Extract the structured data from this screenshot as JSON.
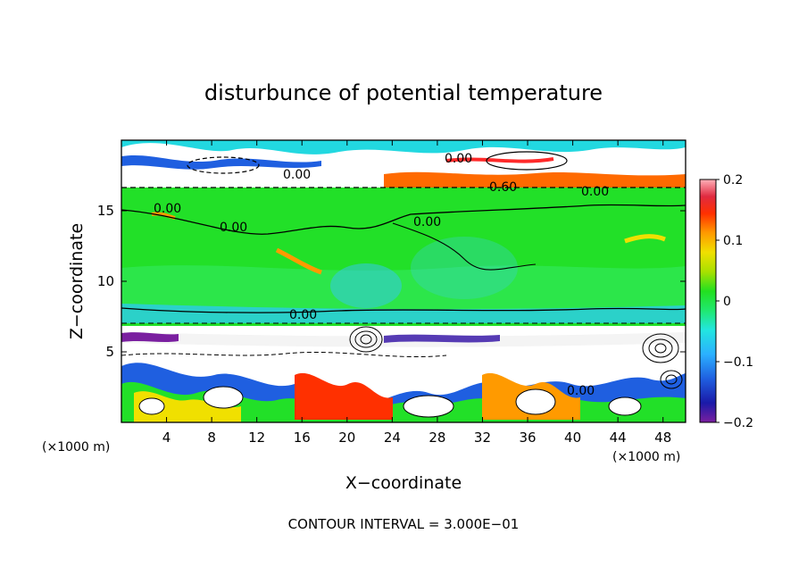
{
  "chart_data": {
    "type": "heatmap",
    "title": "disturbunce of potential temperature",
    "xlabel": "X−coordinate",
    "ylabel": "Z−coordinate",
    "x_unit": "(×1000 m)",
    "y_unit": "(×1000 m)",
    "x_range": [
      0,
      50
    ],
    "y_range": [
      0,
      20
    ],
    "x_ticks": [
      "4",
      "8",
      "12",
      "16",
      "20",
      "24",
      "28",
      "32",
      "36",
      "40",
      "44",
      "48"
    ],
    "y_ticks": [
      "5",
      "10",
      "15"
    ],
    "colorbar": {
      "range": [
        -0.2,
        0.2
      ],
      "tick_labels": [
        "0.2",
        "0.1",
        "0",
        "−0.1",
        "−0.2"
      ],
      "tick_values": [
        0.2,
        0.1,
        0,
        -0.1,
        -0.2
      ]
    },
    "contour_labels": [
      "0.00",
      "0.00",
      "0.00",
      "0.00",
      "0.00",
      "0.00",
      "0.00",
      "0.00",
      "0.60"
    ],
    "footer": "CONTOUR INTERVAL = 3.000E−01",
    "grid": false
  }
}
